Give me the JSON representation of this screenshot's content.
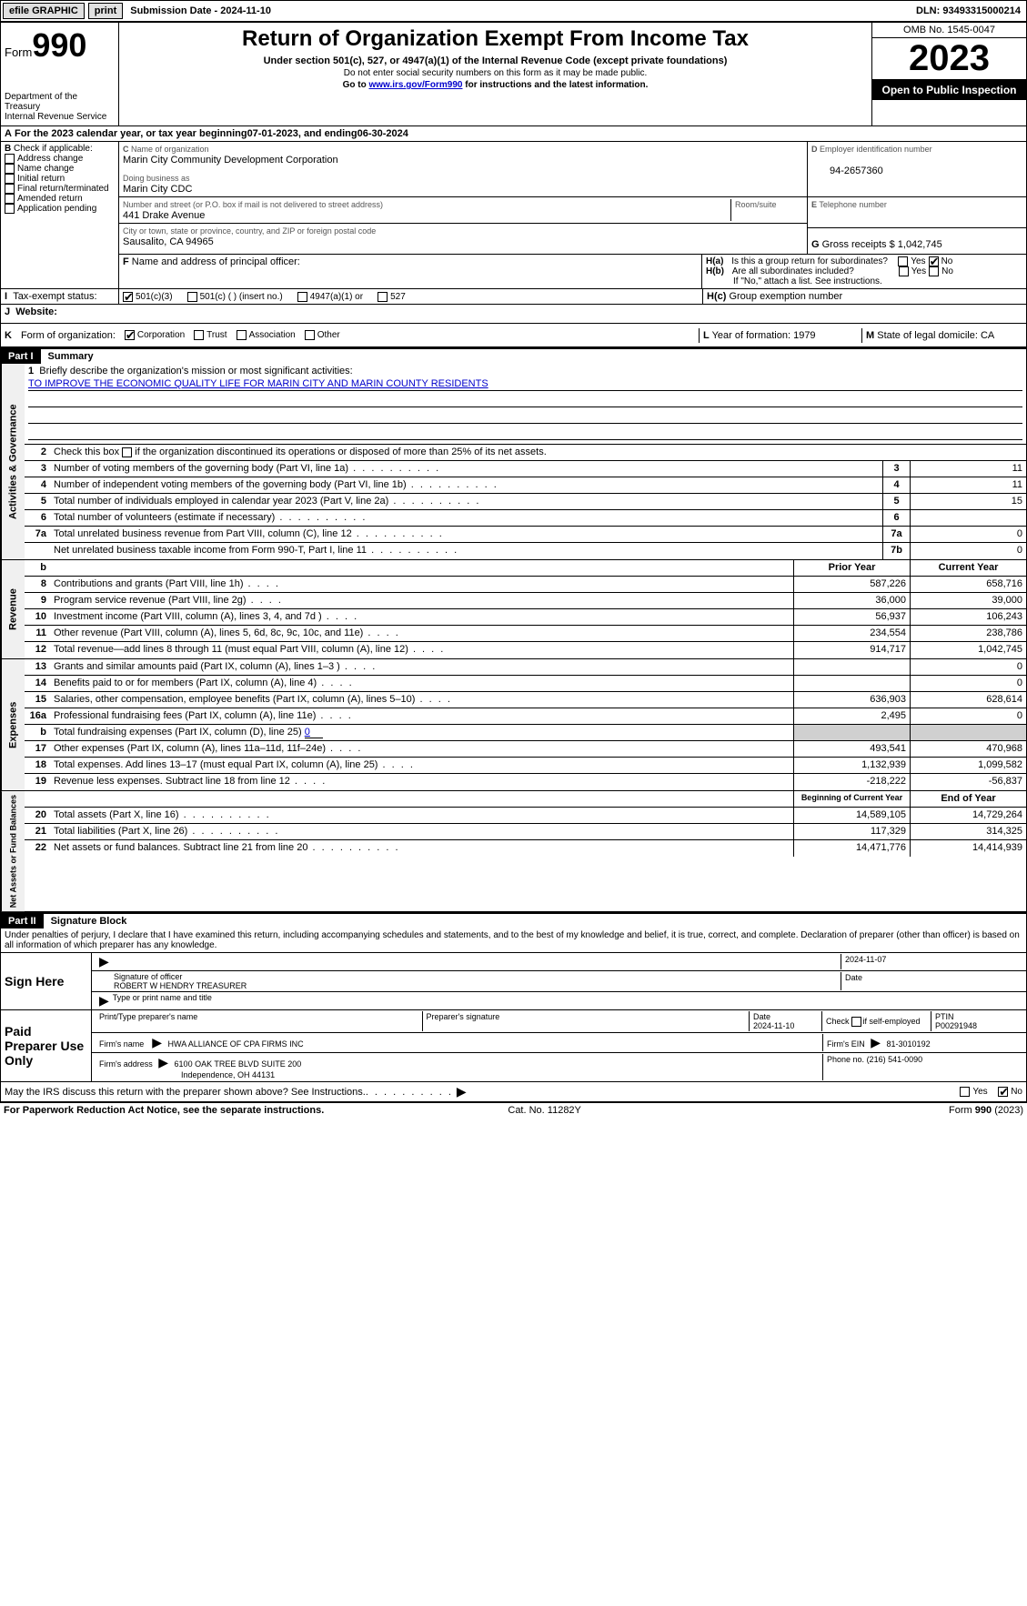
{
  "topbar": {
    "efile": "efile GRAPHIC",
    "print": "print",
    "submission_label": "Submission Date - ",
    "submission_date": "2024-11-10",
    "dln_label": "DLN: ",
    "dln": "93493315000214"
  },
  "header": {
    "form_label": "Form",
    "form_number": "990",
    "dept": "Department of the Treasury",
    "irs": "Internal Revenue Service",
    "title": "Return of Organization Exempt From Income Tax",
    "subtitle": "Under section 501(c), 527, or 4947(a)(1) of the Internal Revenue Code (except private foundations)",
    "instr1": "Do not enter social security numbers on this form as it may be made public.",
    "instr2_pre": "Go to ",
    "instr2_link": "www.irs.gov/Form990",
    "instr2_post": " for instructions and the latest information.",
    "omb": "OMB No. 1545-0047",
    "year": "2023",
    "open": "Open to Public Inspection"
  },
  "A": {
    "text": "For the 2023 calendar year, or tax year beginning ",
    "begin": "07-01-2023",
    "mid": " , and ending ",
    "end": "06-30-2024"
  },
  "B": {
    "label": "Check if applicable:",
    "items": [
      "Address change",
      "Name change",
      "Initial return",
      "Final return/terminated",
      "Amended return",
      "Application pending"
    ]
  },
  "C": {
    "name_label": "Name of organization",
    "name": "Marin City Community Development Corporation",
    "dba_label": "Doing business as",
    "dba": "Marin City CDC",
    "street_label": "Number and street (or P.O. box if mail is not delivered to street address)",
    "room_label": "Room/suite",
    "street": "441 Drake Avenue",
    "city_label": "City or town, state or province, country, and ZIP or foreign postal code",
    "city": "Sausalito, CA  94965"
  },
  "D": {
    "label": "Employer identification number",
    "value": "94-2657360"
  },
  "E": {
    "label": "Telephone number",
    "value": ""
  },
  "F": {
    "label": "Name and address of principal officer:"
  },
  "G": {
    "label": "Gross receipts $ ",
    "value": "1,042,745"
  },
  "H": {
    "a": "Is this a group return for subordinates?",
    "b": "Are all subordinates included?",
    "b_note": "If \"No,\" attach a list. See instructions.",
    "c": "Group exemption number",
    "yes": "Yes",
    "no": "No"
  },
  "I": {
    "label": "Tax-exempt status:",
    "opts": [
      "501(c)(3)",
      "501(c) (  ) (insert no.)",
      "4947(a)(1) or",
      "527"
    ]
  },
  "J": {
    "label": "Website:"
  },
  "K": {
    "label": "Form of organization:",
    "opts": [
      "Corporation",
      "Trust",
      "Association",
      "Other"
    ]
  },
  "L": {
    "label": "Year of formation: ",
    "value": "1979"
  },
  "M": {
    "label": "State of legal domicile: ",
    "value": "CA"
  },
  "part1": {
    "label": "Part I",
    "title": "Summary"
  },
  "summary": {
    "sections": {
      "gov": "Activities & Governance",
      "rev": "Revenue",
      "exp": "Expenses",
      "net": "Net Assets or Fund Balances"
    },
    "line1_label": "Briefly describe the organization's mission or most significant activities:",
    "line1_value": "TO IMPROVE THE ECONOMIC QUALITY LIFE FOR MARIN CITY AND MARIN COUNTY RESIDENTS",
    "line2": "Check this box      if the organization discontinued its operations or disposed of more than 25% of its net assets.",
    "col_prior": "Prior Year",
    "col_current": "Current Year",
    "col_begin": "Beginning of Current Year",
    "col_end": "End of Year",
    "lines_gov": [
      {
        "n": "3",
        "t": "Number of voting members of the governing body (Part VI, line 1a)",
        "box": "3",
        "v": "11"
      },
      {
        "n": "4",
        "t": "Number of independent voting members of the governing body (Part VI, line 1b)",
        "box": "4",
        "v": "11"
      },
      {
        "n": "5",
        "t": "Total number of individuals employed in calendar year 2023 (Part V, line 2a)",
        "box": "5",
        "v": "15"
      },
      {
        "n": "6",
        "t": "Total number of volunteers (estimate if necessary)",
        "box": "6",
        "v": ""
      },
      {
        "n": "7a",
        "t": "Total unrelated business revenue from Part VIII, column (C), line 12",
        "box": "7a",
        "v": "0"
      },
      {
        "n": "",
        "t": "Net unrelated business taxable income from Form 990-T, Part I, line 11",
        "box": "7b",
        "v": "0"
      }
    ],
    "lines_rev": [
      {
        "n": "8",
        "t": "Contributions and grants (Part VIII, line 1h)",
        "p": "587,226",
        "c": "658,716"
      },
      {
        "n": "9",
        "t": "Program service revenue (Part VIII, line 2g)",
        "p": "36,000",
        "c": "39,000"
      },
      {
        "n": "10",
        "t": "Investment income (Part VIII, column (A), lines 3, 4, and 7d )",
        "p": "56,937",
        "c": "106,243"
      },
      {
        "n": "11",
        "t": "Other revenue (Part VIII, column (A), lines 5, 6d, 8c, 9c, 10c, and 11e)",
        "p": "234,554",
        "c": "238,786"
      },
      {
        "n": "12",
        "t": "Total revenue—add lines 8 through 11 (must equal Part VIII, column (A), line 12)",
        "p": "914,717",
        "c": "1,042,745"
      }
    ],
    "lines_exp": [
      {
        "n": "13",
        "t": "Grants and similar amounts paid (Part IX, column (A), lines 1–3 )",
        "p": "",
        "c": "0"
      },
      {
        "n": "14",
        "t": "Benefits paid to or for members (Part IX, column (A), line 4)",
        "p": "",
        "c": "0"
      },
      {
        "n": "15",
        "t": "Salaries, other compensation, employee benefits (Part IX, column (A), lines 5–10)",
        "p": "636,903",
        "c": "628,614"
      },
      {
        "n": "16a",
        "t": "Professional fundraising fees (Part IX, column (A), line 11e)",
        "p": "2,495",
        "c": "0"
      },
      {
        "n": "b",
        "t": "Total fundraising expenses (Part IX, column (D), line 25) ",
        "p": "SHADE",
        "c": "SHADE",
        "inline": "0"
      },
      {
        "n": "17",
        "t": "Other expenses (Part IX, column (A), lines 11a–11d, 11f–24e)",
        "p": "493,541",
        "c": "470,968"
      },
      {
        "n": "18",
        "t": "Total expenses. Add lines 13–17 (must equal Part IX, column (A), line 25)",
        "p": "1,132,939",
        "c": "1,099,582"
      },
      {
        "n": "19",
        "t": "Revenue less expenses. Subtract line 18 from line 12",
        "p": "-218,222",
        "c": "-56,837"
      }
    ],
    "lines_net": [
      {
        "n": "20",
        "t": "Total assets (Part X, line 16)",
        "p": "14,589,105",
        "c": "14,729,264"
      },
      {
        "n": "21",
        "t": "Total liabilities (Part X, line 26)",
        "p": "117,329",
        "c": "314,325"
      },
      {
        "n": "22",
        "t": "Net assets or fund balances. Subtract line 21 from line 20",
        "p": "14,471,776",
        "c": "14,414,939"
      }
    ]
  },
  "part2": {
    "label": "Part II",
    "title": "Signature Block"
  },
  "sig": {
    "declaration": "Under penalties of perjury, I declare that I have examined this return, including accompanying schedules and statements, and to the best of my knowledge and belief, it is true, correct, and complete. Declaration of preparer (other than officer) is based on all information of which preparer has any knowledge.",
    "sign_here": "Sign Here",
    "sig_officer": "Signature of officer",
    "officer_name": "ROBERT W HENDRY  TREASURER",
    "type_name": "Type or print name and title",
    "date_label": "Date",
    "date_val": "2024-11-07",
    "paid": "Paid Preparer Use Only",
    "print_name": "Print/Type preparer's name",
    "prep_sig": "Preparer's signature",
    "prep_date": "2024-11-10",
    "self_emp": "Check        if self-employed",
    "ptin_label": "PTIN",
    "ptin": "P00291948",
    "firm_name_label": "Firm's name",
    "firm_name": "HWA ALLIANCE OF CPA FIRMS INC",
    "firm_ein_label": "Firm's EIN",
    "firm_ein": "81-3010192",
    "firm_addr_label": "Firm's address",
    "firm_addr1": "6100 OAK TREE BLVD SUITE 200",
    "firm_addr2": "Independence, OH  44131",
    "phone_label": "Phone no.",
    "phone": "(216) 541-0090",
    "discuss": "May the IRS discuss this return with the preparer shown above? See Instructions."
  },
  "footer": {
    "paperwork": "For Paperwork Reduction Act Notice, see the separate instructions.",
    "cat": "Cat. No. 11282Y",
    "form": "Form 990 (2023)"
  }
}
